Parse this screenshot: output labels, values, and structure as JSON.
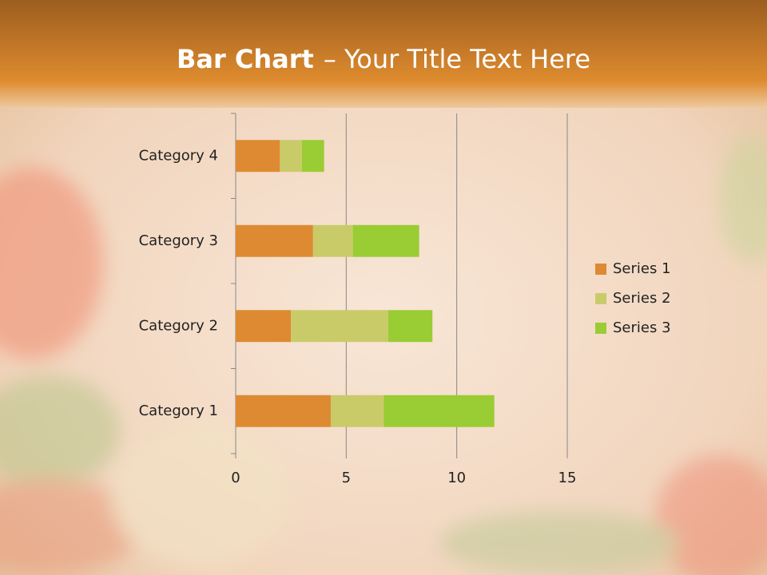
{
  "chart_data": {
    "type": "stacked-bar-horizontal",
    "title": [
      "Bar Chart",
      "– Your Title Text Here"
    ],
    "categories": [
      "Category 1",
      "Category 2",
      "Category 3",
      "Category 4"
    ],
    "series": [
      {
        "name": "Series 1",
        "color": "#dd8a32",
        "values": [
          4.3,
          2.5,
          3.5,
          2
        ]
      },
      {
        "name": "Series 2",
        "color": "#c9cb69",
        "values": [
          2.4,
          4.4,
          1.8,
          1
        ]
      },
      {
        "name": "Series 3",
        "color": "#9acc34",
        "values": [
          5,
          2,
          3,
          1
        ]
      }
    ],
    "xlim": [
      0,
      15
    ],
    "xticks": [
      0,
      5,
      10,
      15
    ],
    "grid": true,
    "legend": "right"
  }
}
